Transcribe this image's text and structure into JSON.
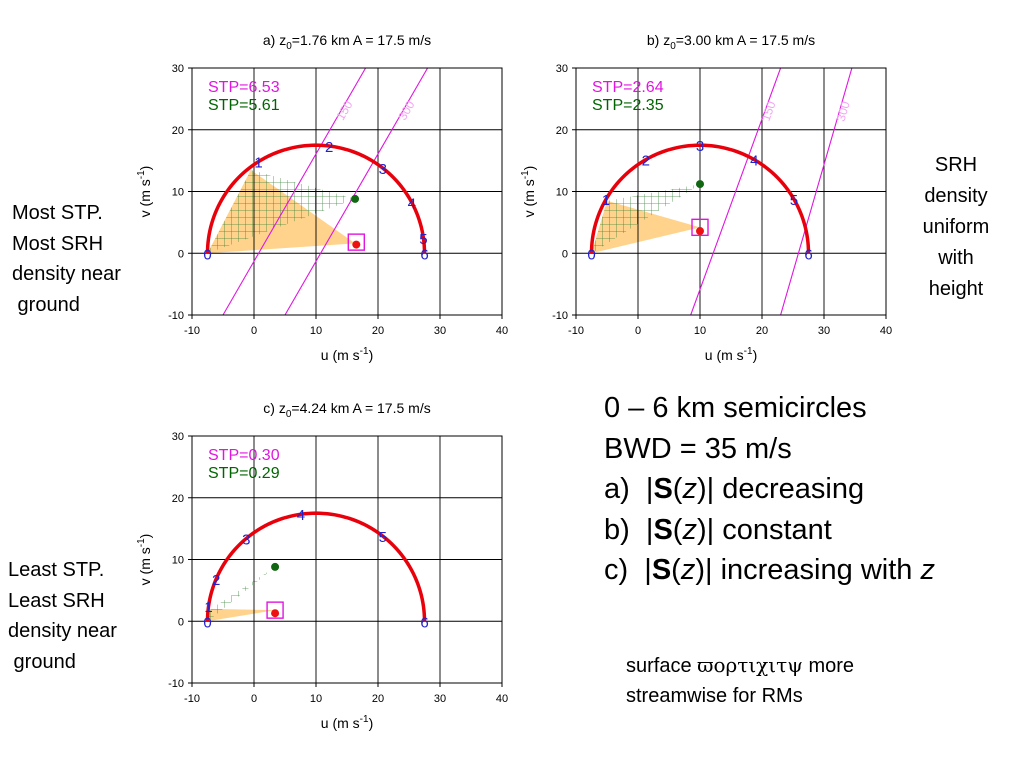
{
  "chart_data": [
    {
      "type": "line",
      "panel_label": "a)",
      "title_parts": {
        "prefix": "a)  z",
        "sub": "0",
        "suffix": "=1.76 km  A = 17.5 m/s"
      },
      "xlabel": "u (m s-1)",
      "ylabel": "v (m s-1)",
      "xlim": [
        -10,
        40
      ],
      "ylim": [
        -10,
        30
      ],
      "xticks": [
        -10,
        0,
        10,
        20,
        30,
        40
      ],
      "yticks": [
        -10,
        0,
        10,
        20,
        30
      ],
      "grid": true,
      "hodograph": {
        "center": [
          10,
          0
        ],
        "radius": 17.5,
        "color": "#e8000b",
        "height_labels": [
          {
            "label": "0",
            "angle_deg": 180
          },
          {
            "label": "1",
            "angle_deg": 122
          },
          {
            "label": "2",
            "angle_deg": 83
          },
          {
            "label": "3",
            "angle_deg": 52
          },
          {
            "label": "4",
            "angle_deg": 28
          },
          {
            "label": "5",
            "angle_deg": 8
          },
          {
            "label": "6",
            "angle_deg": 0
          }
        ]
      },
      "stp": [
        {
          "text": "STP=6.53",
          "color": "#e016e0"
        },
        {
          "text": "STP=5.61",
          "color": "#006400"
        }
      ],
      "srh_lines": [
        {
          "label": "150",
          "p1": [
            -5,
            -10
          ],
          "p2": [
            18,
            30
          ]
        },
        {
          "label": "300",
          "p1": [
            5,
            -10
          ],
          "p2": [
            28,
            30
          ]
        }
      ],
      "storm_motion_red": [
        16.5,
        1.4
      ],
      "storm_motion_green": [
        16.3,
        8.8
      ],
      "box": [
        16.5,
        1.8
      ],
      "orange_triangle": [
        [
          -7.5,
          0
        ],
        [
          -0.5,
          13.5
        ],
        [
          16.3,
          1.6
        ]
      ],
      "hatched_triangle": [
        [
          -7.5,
          0
        ],
        [
          -0.5,
          13.5
        ],
        [
          16.3,
          8.8
        ]
      ]
    },
    {
      "type": "line",
      "panel_label": "b)",
      "title_parts": {
        "prefix": "b)  z",
        "sub": "0",
        "suffix": "=3.00 km A = 17.5 m/s"
      },
      "xlabel": "u (m s-1)",
      "ylabel": "v (m s-1)",
      "xlim": [
        -10,
        40
      ],
      "ylim": [
        -10,
        30
      ],
      "xticks": [
        -10,
        0,
        10,
        20,
        30,
        40
      ],
      "yticks": [
        -10,
        0,
        10,
        20,
        30
      ],
      "grid": true,
      "hodograph": {
        "center": [
          10,
          0
        ],
        "radius": 17.5,
        "color": "#e8000b",
        "height_labels": [
          {
            "label": "0",
            "angle_deg": 180
          },
          {
            "label": "1",
            "angle_deg": 150
          },
          {
            "label": "2",
            "angle_deg": 120
          },
          {
            "label": "3",
            "angle_deg": 90
          },
          {
            "label": "4",
            "angle_deg": 60
          },
          {
            "label": "5",
            "angle_deg": 30
          },
          {
            "label": "6",
            "angle_deg": 0
          }
        ]
      },
      "stp": [
        {
          "text": "STP=2.64",
          "color": "#e016e0"
        },
        {
          "text": "STP=2.35",
          "color": "#006400"
        }
      ],
      "srh_lines": [
        {
          "label": "150",
          "p1": [
            8.5,
            -10
          ],
          "p2": [
            23,
            30
          ]
        },
        {
          "label": "300",
          "p1": [
            23,
            -10
          ],
          "p2": [
            34.5,
            30
          ]
        }
      ],
      "storm_motion_red": [
        10,
        3.6
      ],
      "storm_motion_green": [
        10,
        11.2
      ],
      "box": [
        10,
        4.2
      ],
      "orange_triangle": [
        [
          -7.5,
          0
        ],
        [
          -5,
          8.5
        ],
        [
          10,
          4.2
        ]
      ],
      "hatched_triangle": [
        [
          -7.5,
          0
        ],
        [
          -5,
          8.5
        ],
        [
          10,
          11.2
        ]
      ]
    },
    {
      "type": "line",
      "panel_label": "c)",
      "title_parts": {
        "prefix": "c)  z",
        "sub": "0",
        "suffix": "=4.24 km  A = 17.5 m/s"
      },
      "xlabel": "u (m s-1)",
      "ylabel": "v (m s-1)",
      "xlim": [
        -10,
        40
      ],
      "ylim": [
        -10,
        30
      ],
      "xticks": [
        -10,
        0,
        10,
        20,
        30,
        40
      ],
      "yticks": [
        -10,
        0,
        10,
        20,
        30
      ],
      "grid": true,
      "hodograph": {
        "center": [
          10,
          0
        ],
        "radius": 17.5,
        "color": "#e8000b",
        "height_labels": [
          {
            "label": "0",
            "angle_deg": 180
          },
          {
            "label": "1",
            "angle_deg": 172
          },
          {
            "label": "2",
            "angle_deg": 157
          },
          {
            "label": "3",
            "angle_deg": 130
          },
          {
            "label": "4",
            "angle_deg": 98
          },
          {
            "label": "5",
            "angle_deg": 52
          },
          {
            "label": "6",
            "angle_deg": 0
          }
        ]
      },
      "stp": [
        {
          "text": "STP=0.30",
          "color": "#e016e0"
        },
        {
          "text": "STP=0.29",
          "color": "#006400"
        }
      ],
      "srh_lines": [],
      "storm_motion_red": [
        3.4,
        1.3
      ],
      "storm_motion_green": [
        3.4,
        8.8
      ],
      "box": [
        3.4,
        1.8
      ],
      "orange_triangle": [
        [
          -7.5,
          0
        ],
        [
          -7,
          2
        ],
        [
          3.4,
          1.8
        ]
      ],
      "hatched_triangle": [
        [
          -7.5,
          0
        ],
        [
          -7,
          2
        ],
        [
          3.4,
          8.8
        ]
      ]
    }
  ],
  "notes": {
    "panel_a": [
      "Most STP.",
      "Most SRH",
      "density near",
      " ground"
    ],
    "panel_c": [
      "Least STP.",
      "Least SRH",
      "density near",
      " ground"
    ],
    "right": [
      "SRH",
      "density",
      "uniform",
      "with",
      "height"
    ]
  },
  "summary": {
    "line1": "0 – 6 km semicircles",
    "line2": "BWD = 35 m/s",
    "line3": {
      "prefix": "a)  |",
      "bold": "S",
      "paren_open": "(",
      "var": "z",
      "paren_close": ")| decreasing"
    },
    "line4": {
      "prefix": "b)  |",
      "bold": "S",
      "paren_open": "(",
      "var": "z",
      "paren_close": ")| constant"
    },
    "line5": {
      "prefix": "c)  |",
      "bold": "S",
      "paren_open": "(",
      "var": "z",
      "middle": ")| increasing with ",
      "var2": "z"
    }
  },
  "surface_note": {
    "word": "surface",
    "glyphs": "ϖορτιχιτψ",
    "rest": " more",
    "line2": "streamwise for RMs"
  },
  "colors": {
    "hodograph": "#e8000b",
    "stp_magenta": "#e016e0",
    "stp_green": "#006400",
    "srh_line": "#e016e0",
    "orange_fill": "#ffd38c",
    "hatch": "#2d7a2d",
    "height_label": "#2222cc",
    "red_dot": "#ee1111",
    "green_dot": "#116611"
  }
}
